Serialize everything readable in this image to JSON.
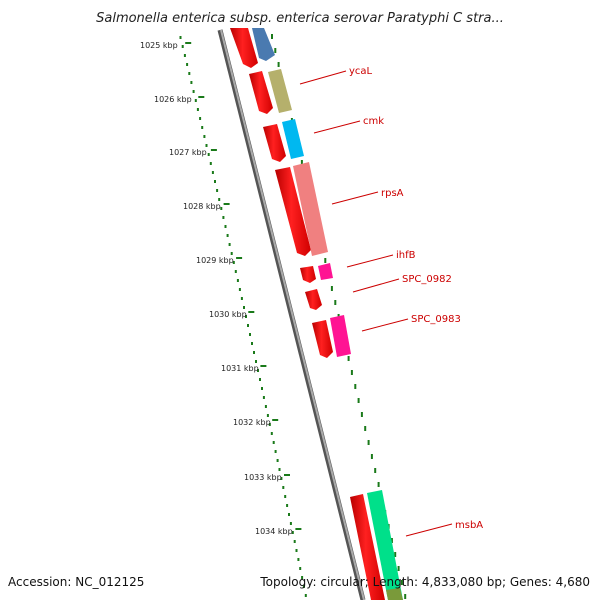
{
  "title": "Salmonella enterica subsp. enterica serovar Paratyphi C stra...",
  "ruler_ticks": [
    "1025 kbp",
    "1026 kbp",
    "1027 kbp",
    "1028 kbp",
    "1029 kbp",
    "1030 kbp",
    "1031 kbp",
    "1032 kbp",
    "1033 kbp",
    "1034 kbp"
  ],
  "genes": [
    {
      "name": "ycaL",
      "color": "#b5b06c"
    },
    {
      "name": "cmk",
      "color": "#00b8f0"
    },
    {
      "name": "rpsA",
      "color": "#f08080"
    },
    {
      "name": "ihfB",
      "color": "#ff1493"
    },
    {
      "name": "SPC_0982",
      "color": ""
    },
    {
      "name": "SPC_0983",
      "color": "#ff1493"
    },
    {
      "name": "msbA",
      "color": "#00e08a"
    }
  ],
  "footer": {
    "accession": "Accession: NC_012125",
    "stats": "Topology: circular; Length: 4,833,080 bp; Genes: 4,680"
  },
  "colors": {
    "cds": "#ff0000",
    "backbone": "#888888",
    "ruler": "#1a7a1a",
    "label": "#cc0000"
  }
}
